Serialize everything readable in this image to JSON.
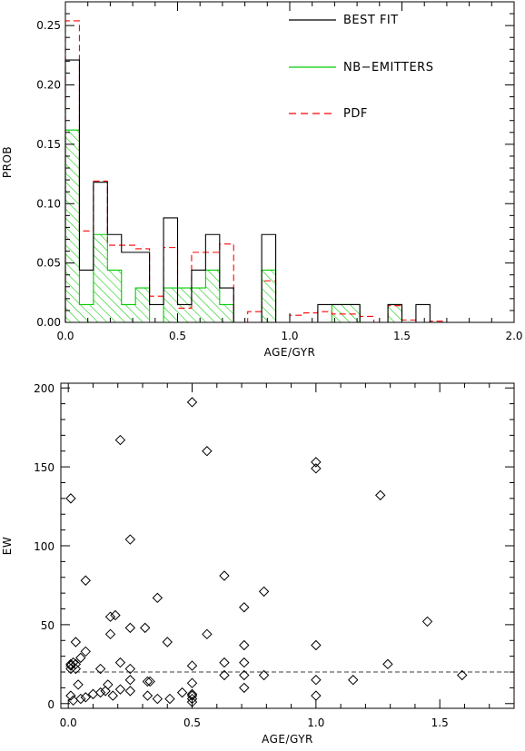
{
  "chart_data": [
    {
      "type": "bar",
      "subtype": "step-histogram",
      "xlabel": "AGE/GYR",
      "ylabel": "PROB",
      "xlim": [
        0,
        2.0
      ],
      "ylim": [
        0,
        0.27
      ],
      "xticks": [
        "0.0",
        "0.5",
        "1.0",
        "1.5",
        "2.0"
      ],
      "yticks": [
        "0.00",
        "0.05",
        "0.10",
        "0.15",
        "0.20",
        "0.25"
      ],
      "legend": {
        "placement": "top-right",
        "entries": [
          "BEST FIT",
          "NB−EMITTERS",
          "PDF"
        ]
      },
      "series": [
        {
          "name": "BEST FIT",
          "color": "#000000",
          "style": "solid",
          "bin_width": 0.0625,
          "x_start": 0.0,
          "values": [
            0.221,
            0.044,
            0.118,
            0.074,
            0.059,
            0.059,
            0.015,
            0.088,
            0.015,
            0.044,
            0.074,
            0.029,
            0.0,
            0.0,
            0.074,
            0.0,
            0.0,
            0.0,
            0.015,
            0.015,
            0.015,
            0.0,
            0.0,
            0.015,
            0.0,
            0.015,
            0.0,
            0.0,
            0.0,
            0.0,
            0.0,
            0.0
          ]
        },
        {
          "name": "NB−EMITTERS",
          "color": "#00cc00",
          "style": "hatched",
          "bin_width": 0.0625,
          "x_start": 0.0,
          "values": [
            0.162,
            0.015,
            0.074,
            0.044,
            0.015,
            0.029,
            0.0,
            0.029,
            0.029,
            0.029,
            0.044,
            0.015,
            0.0,
            0.0,
            0.044,
            0.0,
            0.0,
            0.0,
            0.0,
            0.015,
            0.015,
            0.0,
            0.0,
            0.015,
            0.0,
            0.0,
            0.0,
            0.0,
            0.0,
            0.0,
            0.0,
            0.0
          ]
        },
        {
          "name": "PDF",
          "color": "#ff0000",
          "style": "dashed",
          "bin_width": 0.0625,
          "x_start": 0.0,
          "values": [
            0.254,
            0.077,
            0.119,
            0.065,
            0.065,
            0.062,
            0.022,
            0.063,
            0.012,
            0.059,
            0.059,
            0.066,
            0.0,
            0.009,
            0.035,
            0.0,
            0.006,
            0.008,
            0.009,
            0.007,
            0.007,
            0.005,
            0.0,
            0.014,
            0.002,
            0.0,
            0.001,
            0.0,
            0.0,
            0.0,
            0.0,
            0.0
          ]
        }
      ]
    },
    {
      "type": "scatter",
      "xlabel": "AGE/GYR",
      "ylabel": "EW",
      "xlim": [
        -0.03,
        1.8
      ],
      "ylim": [
        -3,
        203
      ],
      "xticks": [
        "0.0",
        "0.5",
        "1.0",
        "1.5"
      ],
      "yticks": [
        "0",
        "50",
        "100",
        "150",
        "200"
      ],
      "marker": "diamond",
      "hline": {
        "y": 20,
        "style": "dashed"
      },
      "points": [
        [
          0.01,
          130
        ],
        [
          0.01,
          25
        ],
        [
          0.01,
          24
        ],
        [
          0.02,
          26
        ],
        [
          0.01,
          22
        ],
        [
          0.01,
          5
        ],
        [
          0.02,
          2
        ],
        [
          0.03,
          39
        ],
        [
          0.03,
          25
        ],
        [
          0.03,
          22
        ],
        [
          0.04,
          12
        ],
        [
          0.05,
          29
        ],
        [
          0.05,
          3
        ],
        [
          0.07,
          33
        ],
        [
          0.07,
          78
        ],
        [
          0.07,
          4
        ],
        [
          0.1,
          6
        ],
        [
          0.13,
          22
        ],
        [
          0.13,
          7
        ],
        [
          0.15,
          8
        ],
        [
          0.16,
          12
        ],
        [
          0.17,
          55
        ],
        [
          0.17,
          44
        ],
        [
          0.18,
          5
        ],
        [
          0.19,
          56
        ],
        [
          0.21,
          26
        ],
        [
          0.21,
          167
        ],
        [
          0.21,
          9
        ],
        [
          0.25,
          104
        ],
        [
          0.25,
          48
        ],
        [
          0.25,
          22
        ],
        [
          0.25,
          15
        ],
        [
          0.25,
          8
        ],
        [
          0.31,
          48
        ],
        [
          0.32,
          14
        ],
        [
          0.33,
          14
        ],
        [
          0.32,
          5
        ],
        [
          0.36,
          67
        ],
        [
          0.36,
          3
        ],
        [
          0.4,
          39
        ],
        [
          0.41,
          3
        ],
        [
          0.46,
          7
        ],
        [
          0.5,
          191
        ],
        [
          0.5,
          24
        ],
        [
          0.5,
          13
        ],
        [
          0.5,
          6
        ],
        [
          0.5,
          5
        ],
        [
          0.5,
          3
        ],
        [
          0.5,
          1
        ],
        [
          0.56,
          160
        ],
        [
          0.56,
          44
        ],
        [
          0.63,
          81
        ],
        [
          0.63,
          26
        ],
        [
          0.63,
          18
        ],
        [
          0.71,
          61
        ],
        [
          0.71,
          37
        ],
        [
          0.71,
          26
        ],
        [
          0.71,
          18
        ],
        [
          0.71,
          10
        ],
        [
          0.79,
          71
        ],
        [
          0.79,
          18
        ],
        [
          1.0,
          153
        ],
        [
          1.0,
          149
        ],
        [
          1.0,
          37
        ],
        [
          1.0,
          15
        ],
        [
          1.0,
          5
        ],
        [
          1.15,
          15
        ],
        [
          1.26,
          132
        ],
        [
          1.29,
          25
        ],
        [
          1.45,
          52
        ],
        [
          1.59,
          18
        ]
      ]
    }
  ]
}
